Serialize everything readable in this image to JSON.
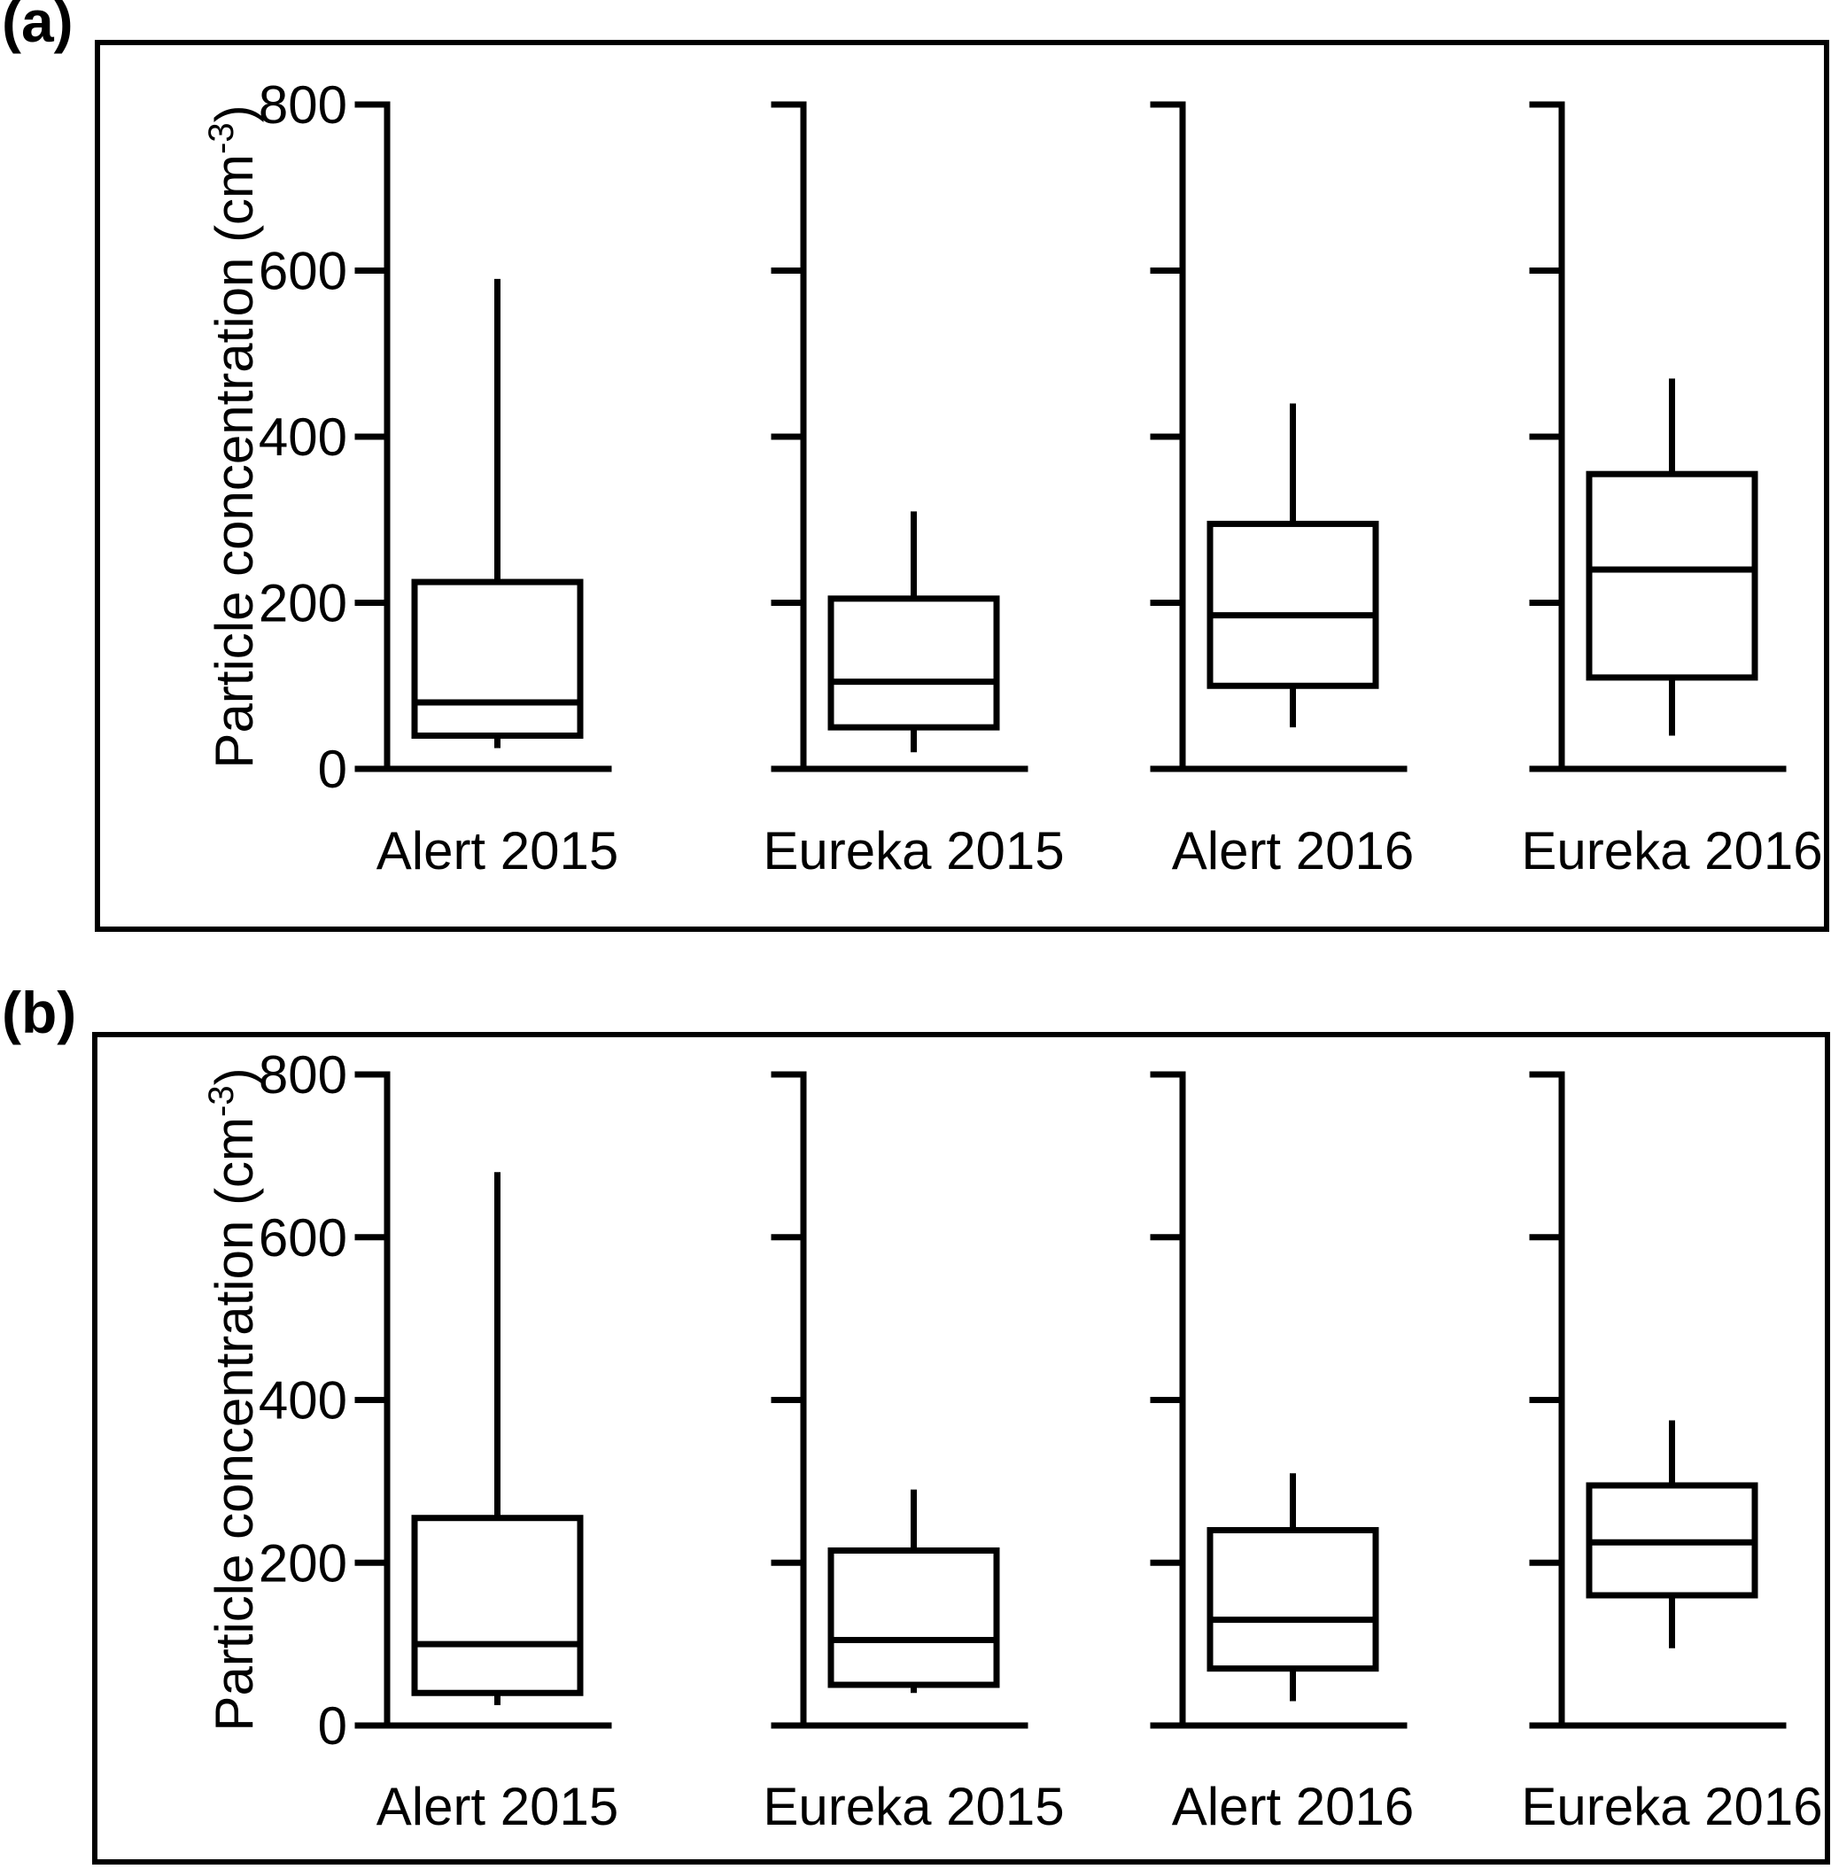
{
  "figure": {
    "panels": [
      {
        "letter": "(a)"
      },
      {
        "letter": "(b)"
      }
    ]
  },
  "colors": {
    "line": "#000000",
    "background": "#ffffff"
  },
  "chart_data": [
    {
      "type": "box",
      "panel": "a",
      "title": "",
      "xlabel": "",
      "ylabel": {
        "text": "Particle concentration (cm",
        "sup": "-3",
        "suffix": ")"
      },
      "categories": [
        "Alert 2015",
        "Eureka 2015",
        "Alert 2016",
        "Eureka 2016"
      ],
      "yticks": [
        0,
        200,
        400,
        600,
        800
      ],
      "ylim": [
        0,
        800
      ],
      "grid": false,
      "legend": "none",
      "series": [
        {
          "name": "Alert 2015",
          "whisker_low": 25,
          "q1": 40,
          "median": 80,
          "q3": 225,
          "whisker_high": 590
        },
        {
          "name": "Eureka 2015",
          "whisker_low": 20,
          "q1": 50,
          "median": 105,
          "q3": 205,
          "whisker_high": 310
        },
        {
          "name": "Alert 2016",
          "whisker_low": 50,
          "q1": 100,
          "median": 185,
          "q3": 295,
          "whisker_high": 440
        },
        {
          "name": "Eureka 2016",
          "whisker_low": 40,
          "q1": 110,
          "median": 240,
          "q3": 355,
          "whisker_high": 470
        }
      ]
    },
    {
      "type": "box",
      "panel": "b",
      "title": "",
      "xlabel": "",
      "ylabel": {
        "text": "Particle concentration (cm",
        "sup": "-3",
        "suffix": ")"
      },
      "categories": [
        "Alert 2015",
        "Eureka 2015",
        "Alert 2016",
        "Eureka 2016"
      ],
      "yticks": [
        0,
        200,
        400,
        600,
        800
      ],
      "ylim": [
        0,
        800
      ],
      "grid": false,
      "legend": "none",
      "series": [
        {
          "name": "Alert 2015",
          "whisker_low": 25,
          "q1": 40,
          "median": 100,
          "q3": 255,
          "whisker_high": 680
        },
        {
          "name": "Eureka 2015",
          "whisker_low": 40,
          "q1": 50,
          "median": 105,
          "q3": 215,
          "whisker_high": 290
        },
        {
          "name": "Alert 2016",
          "whisker_low": 30,
          "q1": 70,
          "median": 130,
          "q3": 240,
          "whisker_high": 310
        },
        {
          "name": "Eureka 2016",
          "whisker_low": 95,
          "q1": 160,
          "median": 225,
          "q3": 295,
          "whisker_high": 375
        }
      ]
    }
  ]
}
